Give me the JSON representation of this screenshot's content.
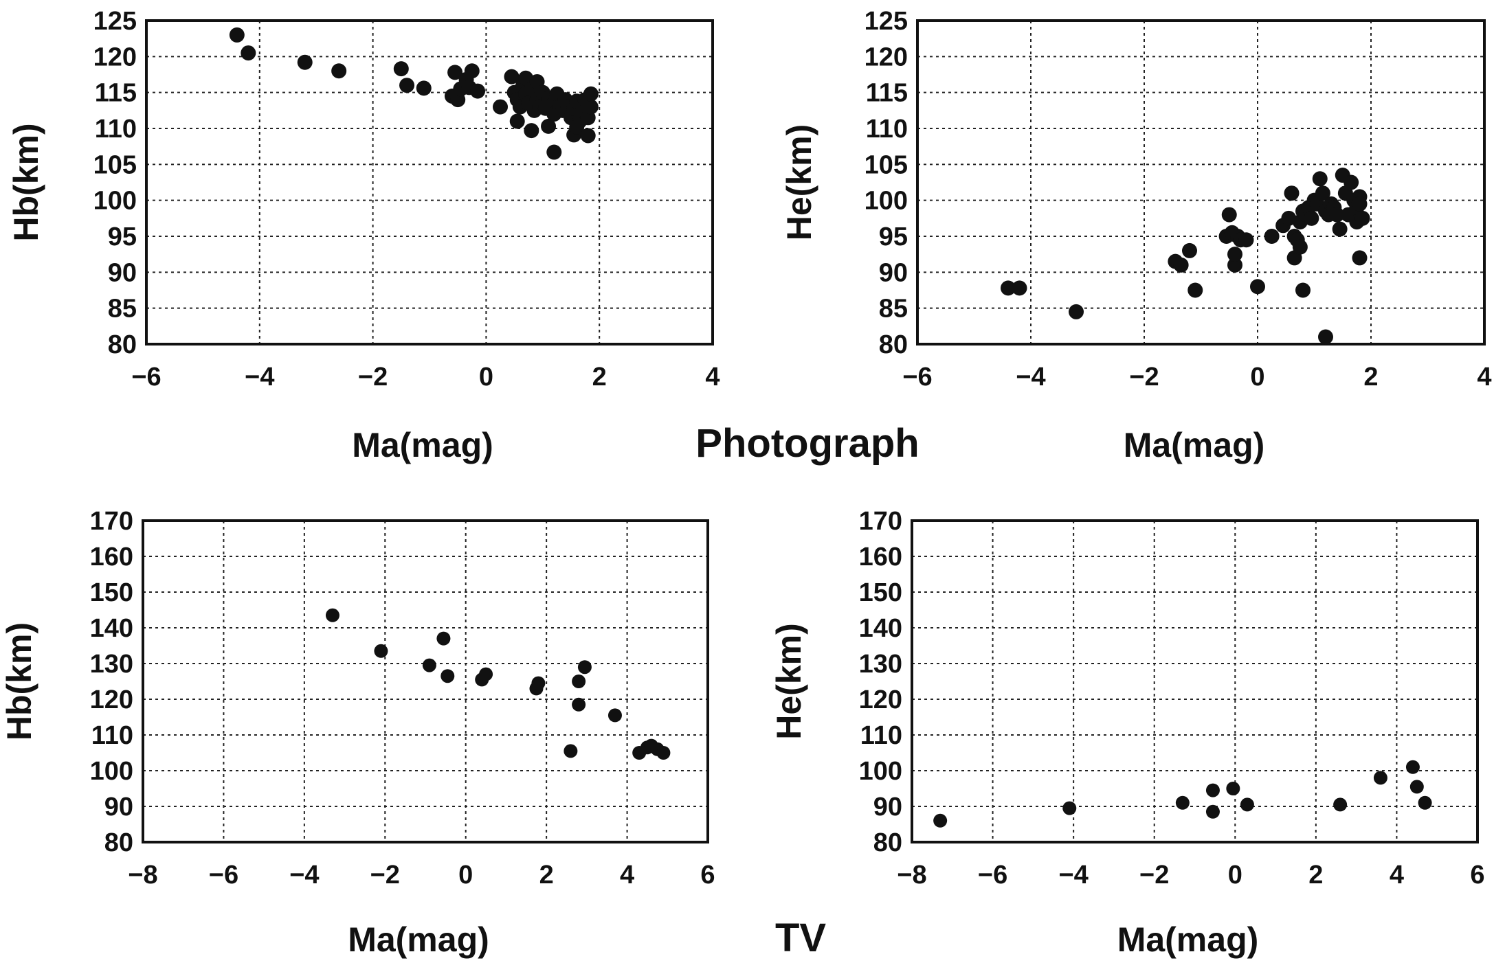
{
  "group_titles": {
    "photograph": "Photograph",
    "tv": "TV"
  },
  "chart_data": [
    {
      "type": "scatter",
      "xlabel": "Ma(mag)",
      "ylabel": "Hb(km)",
      "xlim": [
        -6,
        4
      ],
      "ylim": [
        80,
        125
      ],
      "xticks": [
        -6,
        -4,
        -2,
        0,
        2,
        4
      ],
      "yticks": [
        80,
        85,
        90,
        95,
        100,
        105,
        110,
        115,
        120,
        125
      ],
      "grid": true,
      "series": [
        {
          "x": [
            -4.4,
            -4.2,
            -3.2,
            -2.6,
            -1.5,
            -1.4,
            -1.1,
            -0.6,
            -0.55,
            -0.5,
            -0.45,
            -0.35,
            -0.3,
            -0.25,
            -0.15,
            0.25,
            0.45,
            0.5,
            0.55,
            0.6,
            0.65,
            0.7,
            0.7,
            0.75,
            0.8,
            0.85,
            0.9,
            0.9,
            0.95,
            1.0,
            1.05,
            1.1,
            1.15,
            1.2,
            1.25,
            1.3,
            1.35,
            1.4,
            1.45,
            1.5,
            1.55,
            1.6,
            1.65,
            1.7,
            1.75,
            1.8,
            1.85,
            1.85,
            0.55,
            0.8,
            1.1,
            1.2,
            1.55,
            1.6,
            1.8
          ],
          "y": [
            123,
            120.5,
            119.2,
            118,
            118.3,
            116,
            115.6,
            114.5,
            117.8,
            114,
            115.5,
            116.8,
            115.7,
            118,
            115.2,
            113,
            117.2,
            115,
            114,
            113,
            116,
            117,
            114.8,
            113.5,
            115.5,
            112.5,
            114,
            116.5,
            113,
            115,
            112.8,
            114.2,
            113.2,
            112,
            114.8,
            113,
            112.5,
            114,
            113,
            111.5,
            112.8,
            113.8,
            111,
            112.5,
            114,
            111.5,
            113,
            114.8,
            111,
            109.7,
            110.3,
            106.7,
            109.1,
            110.2,
            109
          ]
        }
      ]
    },
    {
      "type": "scatter",
      "xlabel": "Ma(mag)",
      "ylabel": "He(km)",
      "xlim": [
        -6,
        4
      ],
      "ylim": [
        80,
        125
      ],
      "xticks": [
        -6,
        -4,
        -2,
        0,
        2,
        4
      ],
      "yticks": [
        80,
        85,
        90,
        95,
        100,
        105,
        110,
        115,
        120,
        125
      ],
      "grid": true,
      "series": [
        {
          "x": [
            -4.4,
            -4.2,
            -3.2,
            -1.45,
            -1.35,
            -1.2,
            -1.1,
            -0.55,
            -0.5,
            -0.45,
            -0.4,
            -0.4,
            -0.35,
            -0.3,
            -0.2,
            0.0,
            0.25,
            0.45,
            0.55,
            0.6,
            0.65,
            0.65,
            0.7,
            0.75,
            0.75,
            0.8,
            0.85,
            0.9,
            0.95,
            1.0,
            1.05,
            1.1,
            1.15,
            1.2,
            1.25,
            1.3,
            1.35,
            1.4,
            1.45,
            1.5,
            1.55,
            1.6,
            1.65,
            1.7,
            1.75,
            1.75,
            1.8,
            1.8,
            1.85,
            0.8,
            1.2,
            1.8
          ],
          "y": [
            87.8,
            87.8,
            84.5,
            91.5,
            91,
            93,
            87.5,
            95,
            98,
            95.5,
            91,
            92.5,
            95,
            94.5,
            94.5,
            88,
            95,
            96.5,
            97.5,
            101,
            95,
            92,
            94.5,
            97,
            93.5,
            98.5,
            98,
            99,
            97.5,
            100,
            99.5,
            103,
            101,
            98.5,
            98,
            99.5,
            99,
            98,
            96,
            103.5,
            101,
            98,
            102.5,
            100,
            97,
            99,
            100.5,
            99.5,
            97.5,
            87.5,
            81,
            92
          ]
        }
      ]
    },
    {
      "type": "scatter",
      "xlabel": "Ma(mag)",
      "ylabel": "Hb(km)",
      "xlim": [
        -8,
        6
      ],
      "ylim": [
        80,
        170
      ],
      "xticks": [
        -8,
        -6,
        -4,
        -2,
        0,
        2,
        4,
        6
      ],
      "yticks": [
        80,
        90,
        100,
        110,
        120,
        130,
        140,
        150,
        160,
        170
      ],
      "grid": true,
      "series": [
        {
          "x": [
            -3.3,
            -2.1,
            -0.9,
            -0.55,
            -0.45,
            0.4,
            0.5,
            1.75,
            1.8,
            2.6,
            2.8,
            2.8,
            2.95,
            3.7,
            4.3,
            4.5,
            4.6,
            4.75,
            4.9
          ],
          "y": [
            143.5,
            133.5,
            129.5,
            137,
            126.5,
            125.5,
            127,
            123,
            124.5,
            105.5,
            125,
            118.5,
            129,
            115.5,
            105,
            106.5,
            107,
            106,
            105
          ]
        }
      ]
    },
    {
      "type": "scatter",
      "xlabel": "Ma(mag)",
      "ylabel": "He(km)",
      "xlim": [
        -8,
        6
      ],
      "ylim": [
        80,
        170
      ],
      "xticks": [
        -8,
        -6,
        -4,
        -2,
        0,
        2,
        4,
        6
      ],
      "yticks": [
        80,
        90,
        100,
        110,
        120,
        130,
        140,
        150,
        160,
        170
      ],
      "grid": true,
      "series": [
        {
          "x": [
            -7.3,
            -4.1,
            -1.3,
            -0.55,
            -0.55,
            -0.05,
            0.3,
            2.6,
            3.6,
            4.4,
            4.5,
            4.7
          ],
          "y": [
            86,
            89.5,
            91,
            94.5,
            88.5,
            95,
            90.5,
            90.5,
            98,
            101,
            95.5,
            91
          ]
        }
      ]
    }
  ]
}
